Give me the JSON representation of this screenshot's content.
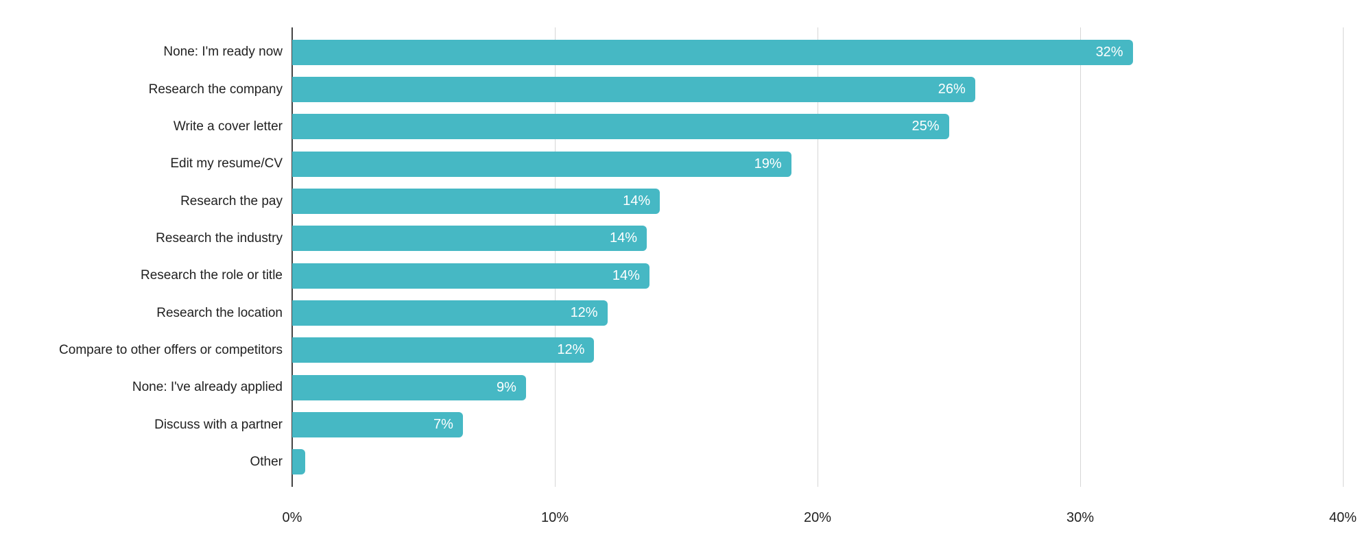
{
  "chart_data": {
    "type": "bar",
    "orientation": "horizontal",
    "title": "",
    "xlabel": "",
    "ylabel": "",
    "legend_position": "none",
    "grid": "vertical gridlines only",
    "xlim": [
      0,
      40
    ],
    "categories": [
      "None: I'm ready now",
      "Research the company",
      "Write a cover letter",
      "Edit my resume/CV",
      "Research the pay",
      "Research the industry",
      "Research the role or title",
      "Research the location",
      "Compare to other offers or competitors",
      "None: I've already applied",
      "Discuss with a partner",
      "Other"
    ],
    "values": [
      32,
      26,
      25,
      19,
      14,
      13.5,
      13.6,
      12,
      11.5,
      8.9,
      6.5,
      0.5
    ],
    "bar_labels": [
      "32%",
      "26%",
      "25%",
      "19%",
      "14%",
      "14%",
      "14%",
      "12%",
      "12%",
      "9%",
      "7%",
      ""
    ],
    "x_ticks": [
      {
        "value": 0,
        "label": "0%"
      },
      {
        "value": 10,
        "label": "10%"
      },
      {
        "value": 20,
        "label": "20%"
      },
      {
        "value": 30,
        "label": "30%"
      },
      {
        "value": 40,
        "label": "40%"
      }
    ],
    "colors": {
      "bar": "#46b8c4",
      "bar_label_text": "#ffffff",
      "category_label_text": "#212121",
      "tick_label_text": "#212121",
      "gridline": "#d6d6d6",
      "baseline": "#424242",
      "background": "#ffffff"
    }
  }
}
